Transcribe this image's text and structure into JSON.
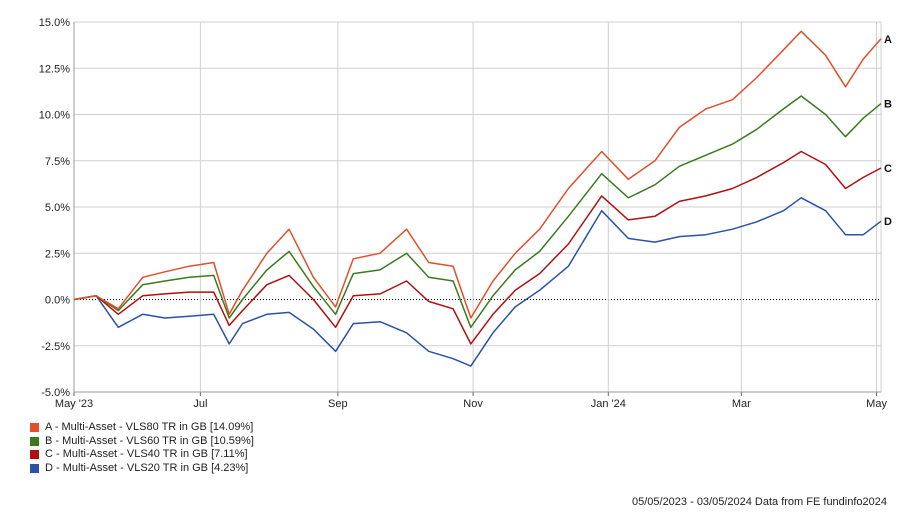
{
  "chart_data": {
    "type": "line",
    "title": "",
    "xlabel": "",
    "ylabel": "",
    "ylim": [
      -5,
      15
    ],
    "y_ticks": [
      "15.0%",
      "12.5%",
      "10.0%",
      "7.5%",
      "5.0%",
      "2.5%",
      "0.0%",
      "-2.5%",
      "-5.0%"
    ],
    "x_ticks": [
      {
        "label": "May '23",
        "date": "2023-05-01"
      },
      {
        "label": "Jul",
        "date": "2023-07-01"
      },
      {
        "label": "Sep",
        "date": "2023-09-01"
      },
      {
        "label": "Nov",
        "date": "2023-11-01"
      },
      {
        "label": "Jan '24",
        "date": "2024-01-01"
      },
      {
        "label": "Mar",
        "date": "2024-03-01"
      },
      {
        "label": "May",
        "date": "2024-05-01"
      }
    ],
    "grid": true,
    "zero_line": "dotted",
    "x_start": "2023-05-05",
    "x_end": "2024-05-03",
    "series": [
      {
        "name": "A - Multi-Asset - VLS80 TR in GB [14.09%]",
        "tag": "A",
        "color": "#e0502a",
        "x": [
          "2023-05-05",
          "2023-05-15",
          "2023-05-25",
          "2023-06-05",
          "2023-06-15",
          "2023-06-26",
          "2023-07-07",
          "2023-07-14",
          "2023-07-20",
          "2023-07-31",
          "2023-08-10",
          "2023-08-21",
          "2023-08-31",
          "2023-09-08",
          "2023-09-20",
          "2023-10-02",
          "2023-10-12",
          "2023-10-23",
          "2023-10-31",
          "2023-11-10",
          "2023-11-20",
          "2023-12-01",
          "2023-12-14",
          "2023-12-29",
          "2024-01-10",
          "2024-01-22",
          "2024-02-02",
          "2024-02-14",
          "2024-02-26",
          "2024-03-08",
          "2024-03-20",
          "2024-03-28",
          "2024-04-08",
          "2024-04-17",
          "2024-04-25",
          "2024-05-03"
        ],
        "y": [
          0.0,
          0.2,
          -0.5,
          1.2,
          1.5,
          1.8,
          2.0,
          -0.8,
          0.5,
          2.5,
          3.8,
          1.2,
          -0.4,
          2.2,
          2.5,
          3.8,
          2.0,
          1.8,
          -1.0,
          1.0,
          2.5,
          3.8,
          6.0,
          8.0,
          6.5,
          7.5,
          9.3,
          10.3,
          10.8,
          12.0,
          13.5,
          14.5,
          13.2,
          11.5,
          13.0,
          14.09
        ]
      },
      {
        "name": "B - Multi-Asset - VLS60 TR in GB [10.59%]",
        "tag": "B",
        "color": "#3c7a1e",
        "x": [
          "2023-05-05",
          "2023-05-15",
          "2023-05-25",
          "2023-06-05",
          "2023-06-15",
          "2023-06-26",
          "2023-07-07",
          "2023-07-14",
          "2023-07-20",
          "2023-07-31",
          "2023-08-10",
          "2023-08-21",
          "2023-08-31",
          "2023-09-08",
          "2023-09-20",
          "2023-10-02",
          "2023-10-12",
          "2023-10-23",
          "2023-10-31",
          "2023-11-10",
          "2023-11-20",
          "2023-12-01",
          "2023-12-14",
          "2023-12-29",
          "2024-01-10",
          "2024-01-22",
          "2024-02-02",
          "2024-02-14",
          "2024-02-26",
          "2024-03-08",
          "2024-03-20",
          "2024-03-28",
          "2024-04-08",
          "2024-04-17",
          "2024-04-25",
          "2024-05-03"
        ],
        "y": [
          0.0,
          0.2,
          -0.6,
          0.8,
          1.0,
          1.2,
          1.3,
          -1.0,
          0.0,
          1.6,
          2.6,
          0.7,
          -0.8,
          1.4,
          1.6,
          2.5,
          1.2,
          1.0,
          -1.5,
          0.2,
          1.6,
          2.6,
          4.5,
          6.8,
          5.5,
          6.2,
          7.2,
          7.8,
          8.4,
          9.2,
          10.3,
          11.0,
          10.0,
          8.8,
          9.8,
          10.59
        ]
      },
      {
        "name": "C - Multi-Asset - VLS40 TR in GB [7.11%]",
        "tag": "C",
        "color": "#b01010",
        "x": [
          "2023-05-05",
          "2023-05-15",
          "2023-05-25",
          "2023-06-05",
          "2023-06-15",
          "2023-06-26",
          "2023-07-07",
          "2023-07-14",
          "2023-07-20",
          "2023-07-31",
          "2023-08-10",
          "2023-08-21",
          "2023-08-31",
          "2023-09-08",
          "2023-09-20",
          "2023-10-02",
          "2023-10-12",
          "2023-10-23",
          "2023-10-31",
          "2023-11-10",
          "2023-11-20",
          "2023-12-01",
          "2023-12-14",
          "2023-12-29",
          "2024-01-10",
          "2024-01-22",
          "2024-02-02",
          "2024-02-14",
          "2024-02-26",
          "2024-03-08",
          "2024-03-20",
          "2024-03-28",
          "2024-04-08",
          "2024-04-17",
          "2024-04-25",
          "2024-05-03"
        ],
        "y": [
          0.0,
          0.2,
          -0.8,
          0.2,
          0.3,
          0.4,
          0.4,
          -1.4,
          -0.6,
          0.8,
          1.3,
          0.0,
          -1.5,
          0.2,
          0.3,
          1.0,
          -0.1,
          -0.5,
          -2.4,
          -0.8,
          0.5,
          1.4,
          3.0,
          5.6,
          4.3,
          4.5,
          5.3,
          5.6,
          6.0,
          6.6,
          7.4,
          8.0,
          7.3,
          6.0,
          6.6,
          7.11
        ]
      },
      {
        "name": "D - Multi-Asset - VLS20 TR in GB [4.23%]",
        "tag": "D",
        "color": "#2a52a8",
        "x": [
          "2023-05-05",
          "2023-05-15",
          "2023-05-25",
          "2023-06-05",
          "2023-06-15",
          "2023-06-26",
          "2023-07-07",
          "2023-07-14",
          "2023-07-20",
          "2023-07-31",
          "2023-08-10",
          "2023-08-21",
          "2023-08-31",
          "2023-09-08",
          "2023-09-20",
          "2023-10-02",
          "2023-10-12",
          "2023-10-23",
          "2023-10-31",
          "2023-11-10",
          "2023-11-20",
          "2023-12-01",
          "2023-12-14",
          "2023-12-29",
          "2024-01-10",
          "2024-01-22",
          "2024-02-02",
          "2024-02-14",
          "2024-02-26",
          "2024-03-08",
          "2024-03-20",
          "2024-03-28",
          "2024-04-08",
          "2024-04-17",
          "2024-04-25",
          "2024-05-03"
        ],
        "y": [
          0.0,
          0.2,
          -1.5,
          -0.8,
          -1.0,
          -0.9,
          -0.8,
          -2.4,
          -1.3,
          -0.8,
          -0.7,
          -1.6,
          -2.8,
          -1.3,
          -1.2,
          -1.8,
          -2.8,
          -3.2,
          -3.6,
          -1.8,
          -0.4,
          0.5,
          1.8,
          4.8,
          3.3,
          3.1,
          3.4,
          3.5,
          3.8,
          4.2,
          4.8,
          5.5,
          4.8,
          3.5,
          3.5,
          4.23
        ]
      }
    ]
  },
  "footer": {
    "text": "05/05/2023 - 03/05/2024 Data from FE fundinfo2024"
  }
}
